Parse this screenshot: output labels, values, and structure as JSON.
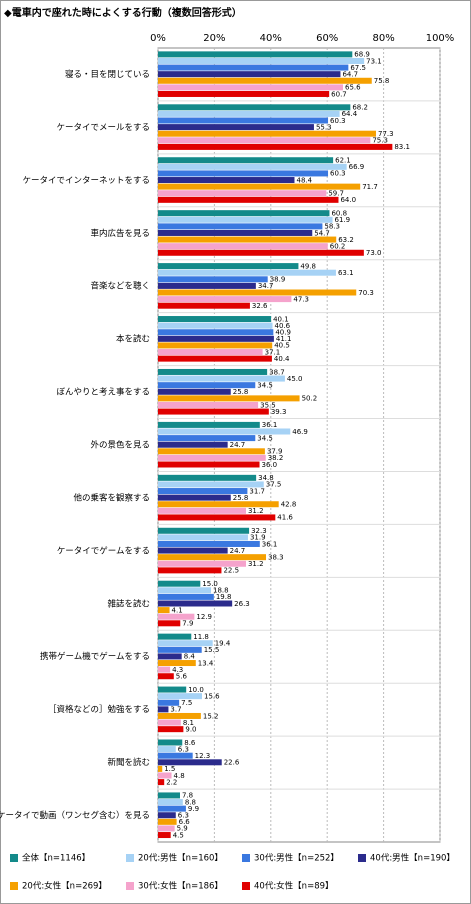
{
  "chart_data": {
    "type": "hbar",
    "title": "◆電車内で座れた時によくする行動（複数回答形式）",
    "categories": [
      "寝る・目を閉じている",
      "ケータイでメールをする",
      "ケータイでインターネットをする",
      "車内広告を見る",
      "音楽などを聴く",
      "本を読む",
      "ぼんやりと考え事をする",
      "外の景色を見る",
      "他の乗客を観察する",
      "ケータイでゲームをする",
      "雑誌を読む",
      "携帯ゲーム機でゲームをする",
      "［資格などの］勉強をする",
      "新聞を読む",
      "ケータイで動画（ワンセグ含む）を見る"
    ],
    "series": [
      {
        "name": "全体【n=1146】",
        "color": "#138a8a",
        "values": [
          68.9,
          68.2,
          62.1,
          60.8,
          49.8,
          40.1,
          38.7,
          36.1,
          34.8,
          32.3,
          15.0,
          11.8,
          10.0,
          8.6,
          7.8
        ],
        "value_labels": [
          "68.9",
          "68.2",
          "62.1",
          "60.8",
          "49.8",
          "40.1",
          "38.7",
          "36.1",
          "34.8",
          "32.3",
          "15.0",
          "11.8",
          "10.0",
          "8.6",
          "7.8"
        ]
      },
      {
        "name": "20代:男性【n=160】",
        "color": "#a6d2f5",
        "values": [
          73.1,
          64.4,
          66.9,
          61.9,
          63.1,
          40.6,
          45.0,
          46.9,
          37.5,
          31.9,
          18.8,
          19.4,
          15.6,
          6.3,
          8.8
        ],
        "value_labels": [
          "73.1",
          "64.4",
          "66.9",
          "61.9",
          "63.1",
          "40.6",
          "45.0",
          "46.9",
          "37.5",
          "31.9",
          "18.8",
          "19.4",
          "15.6",
          "6.3",
          "8.8"
        ]
      },
      {
        "name": "30代:男性【n=252】",
        "color": "#3a78e0",
        "values": [
          67.5,
          60.3,
          60.3,
          58.3,
          38.9,
          40.9,
          34.5,
          34.5,
          31.7,
          36.1,
          19.8,
          15.5,
          7.5,
          12.3,
          9.9
        ],
        "value_labels": [
          "67.5",
          "60.3",
          "60.3",
          "58.3",
          "38.9",
          "40.9",
          "34.5",
          "34.5",
          "31.7",
          "36.1",
          "19.8",
          "15.5",
          "7.5",
          "12.3",
          "9.9"
        ]
      },
      {
        "name": "40代:男性【n=190】",
        "color": "#2b2b8c",
        "values": [
          64.7,
          55.3,
          48.4,
          54.7,
          34.7,
          41.1,
          25.8,
          24.7,
          25.8,
          24.7,
          26.3,
          8.4,
          3.7,
          22.6,
          6.3
        ],
        "value_labels": [
          "64.7",
          "55.3",
          "48.4",
          "54.7",
          "34.7",
          "41.1",
          "25.8",
          "24.7",
          "25.8",
          "24.7",
          "26.3",
          "8.4",
          "3.7",
          "22.6",
          "6.3"
        ]
      },
      {
        "name": "20代:女性【n=269】",
        "color": "#f5a000",
        "values": [
          75.8,
          77.3,
          71.7,
          63.2,
          70.3,
          40.5,
          50.2,
          37.9,
          42.8,
          38.3,
          4.1,
          13.4,
          15.2,
          1.5,
          6.6
        ],
        "value_labels": [
          "75.8",
          "77.3",
          "71.7",
          "63.2",
          "70.3",
          "40.5",
          "50.2",
          "37.9",
          "42.8",
          "38.3",
          "4.1",
          "13.4",
          "15.2",
          "1.5",
          "6.6"
        ]
      },
      {
        "name": "30代:女性【n=186】",
        "color": "#f5a3cc",
        "values": [
          65.6,
          75.3,
          59.7,
          60.2,
          47.3,
          37.1,
          35.5,
          38.2,
          31.2,
          31.2,
          12.9,
          4.3,
          8.1,
          4.8,
          5.9
        ],
        "value_labels": [
          "65.6",
          "75.3",
          "59.7",
          "60.2",
          "47.3",
          "37.1",
          "35.5",
          "38.2",
          "31.2",
          "31.2",
          "12.9",
          "4.3",
          "8.1",
          "4.8",
          "5.9"
        ]
      },
      {
        "name": "40代:女性【n=89】",
        "color": "#e00000",
        "values": [
          60.7,
          83.1,
          64.0,
          73.0,
          32.6,
          40.4,
          39.3,
          36.0,
          41.6,
          22.5,
          7.9,
          5.6,
          9.0,
          2.2,
          4.5
        ],
        "value_labels": [
          "60.7",
          "83.1",
          "64.0",
          "73.0",
          "32.6",
          "40.4",
          "39.3",
          "36.0",
          "41.6",
          "22.5",
          "7.9",
          "5.6",
          "9.0",
          "2.2",
          "4.5"
        ]
      }
    ],
    "xlim": [
      0,
      100
    ],
    "xticks": [
      {
        "value": 0,
        "label": "0%"
      },
      {
        "value": 20,
        "label": "20%"
      },
      {
        "value": 40,
        "label": "40%"
      },
      {
        "value": 60,
        "label": "60%"
      },
      {
        "value": 80,
        "label": "80%"
      },
      {
        "value": 100,
        "label": "100%"
      }
    ],
    "grid": true
  }
}
